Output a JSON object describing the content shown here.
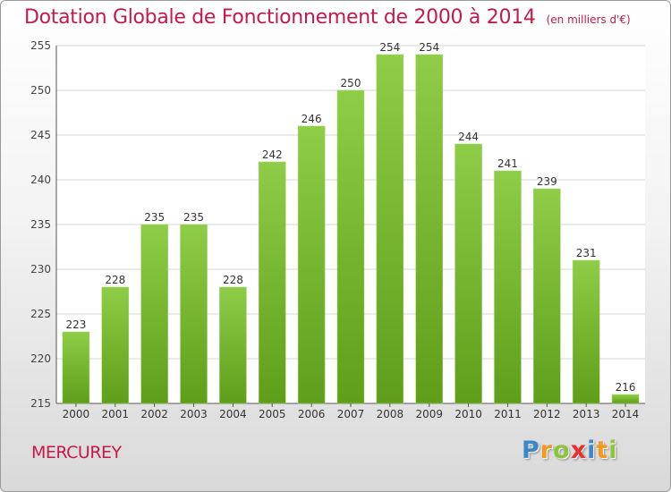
{
  "header": {
    "title": "Dotation Globale de Fonctionnement de 2000 à 2014",
    "unit": "(en milliers d'€)"
  },
  "footer": {
    "commune": "MERCUREY",
    "logo_letters": [
      "P",
      "r",
      "o",
      "x",
      "i",
      "t",
      "i"
    ],
    "logo_colors": [
      "#3d87c8",
      "#f19a1f",
      "#8cc43c",
      "#e8312e",
      "#3d87c8",
      "#f19a1f",
      "#8cc43c"
    ]
  },
  "chart_data": {
    "type": "bar",
    "title": "Dotation Globale de Fonctionnement de 2000 à 2014",
    "subtitle": "(en milliers d'€)",
    "categories": [
      "2000",
      "2001",
      "2002",
      "2003",
      "2004",
      "2005",
      "2006",
      "2007",
      "2008",
      "2009",
      "2010",
      "2011",
      "2012",
      "2013",
      "2014"
    ],
    "values": [
      223,
      228,
      235,
      235,
      228,
      242,
      246,
      250,
      254,
      254,
      244,
      241,
      239,
      231,
      216
    ],
    "ylim": [
      215,
      255
    ],
    "yticks": [
      215,
      220,
      225,
      230,
      235,
      240,
      245,
      250,
      255
    ],
    "grid": true,
    "colors": {
      "bar_top": "#8fcd48",
      "bar_bottom": "#5f9e1a",
      "title": "#c41a4b"
    }
  }
}
